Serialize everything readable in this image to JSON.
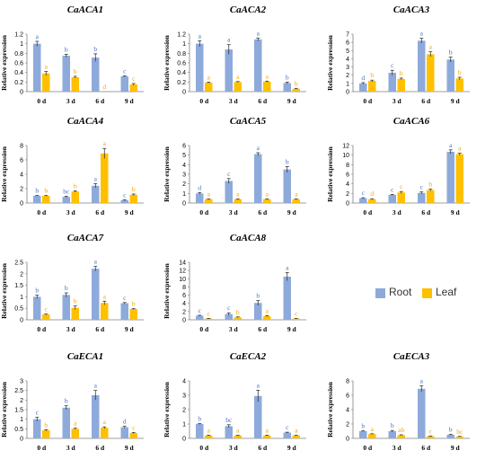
{
  "colors": {
    "root": "#8EAADB",
    "leaf": "#FFC000",
    "axis": "#7f7f7f",
    "root_label": "#4472C4",
    "leaf_label": "#F0A800"
  },
  "legend": {
    "root": "Root",
    "leaf": "Leaf"
  },
  "chart_data": [
    {
      "type": "bar",
      "title": "CaACA1",
      "ylabel": "Relative expression",
      "categories": [
        "0 d",
        "3 d",
        "6 d",
        "9 d"
      ],
      "ylim": [
        0,
        1.2
      ],
      "yticks": [
        0,
        0.2,
        0.4,
        0.6,
        0.8,
        1,
        1.2
      ],
      "series": [
        {
          "name": "Root",
          "values": [
            1.0,
            0.75,
            0.71,
            0.32
          ],
          "errors": [
            0.05,
            0.03,
            0.08,
            0.01
          ],
          "labels": [
            "a",
            "b",
            "b",
            "c"
          ]
        },
        {
          "name": "Leaf",
          "values": [
            0.38,
            0.3,
            0.0,
            0.15
          ],
          "errors": [
            0.04,
            0.02,
            0.0,
            0.02
          ],
          "labels": [
            "a",
            "b",
            "d",
            "c"
          ]
        }
      ]
    },
    {
      "type": "bar",
      "title": "CaACA2",
      "ylabel": "Relative expression",
      "categories": [
        "0 d",
        "3 d",
        "6 d",
        "9 d"
      ],
      "ylim": [
        0,
        1.2
      ],
      "yticks": [
        0,
        0.2,
        0.4,
        0.6,
        0.8,
        1,
        1.2
      ],
      "series": [
        {
          "name": "Root",
          "values": [
            1.0,
            0.88,
            1.09,
            0.18
          ],
          "errors": [
            0.06,
            0.1,
            0.03,
            0.02
          ],
          "labels": [
            "a",
            "a",
            "a",
            "b"
          ]
        },
        {
          "name": "Leaf",
          "values": [
            0.19,
            0.2,
            0.21,
            0.06
          ],
          "errors": [
            0.01,
            0.01,
            0.01,
            0.01
          ],
          "labels": [
            "a",
            "a",
            "a",
            "b"
          ]
        }
      ]
    },
    {
      "type": "bar",
      "title": "CaACA3",
      "ylabel": "Relative expression",
      "categories": [
        "0 d",
        "3 d",
        "6 d",
        "9 d"
      ],
      "ylim": [
        0,
        7
      ],
      "yticks": [
        0,
        1,
        2,
        3,
        4,
        5,
        6,
        7
      ],
      "series": [
        {
          "name": "Root",
          "values": [
            1.0,
            2.3,
            6.2,
            3.9
          ],
          "errors": [
            0.1,
            0.3,
            0.3,
            0.3
          ],
          "labels": [
            "d",
            "c",
            "a",
            "b"
          ]
        },
        {
          "name": "Leaf",
          "values": [
            1.3,
            1.55,
            4.55,
            1.6
          ],
          "errors": [
            0.1,
            0.1,
            0.3,
            0.15
          ],
          "labels": [
            "b",
            "b",
            "a",
            "b"
          ]
        }
      ]
    },
    {
      "type": "bar",
      "title": "CaACA4",
      "ylabel": "Relative expression",
      "categories": [
        "0 d",
        "3 d",
        "6 d",
        "9 d"
      ],
      "ylim": [
        0,
        8
      ],
      "yticks": [
        0,
        2,
        4,
        6,
        8
      ],
      "series": [
        {
          "name": "Root",
          "values": [
            1.0,
            0.85,
            2.4,
            0.4
          ],
          "errors": [
            0.05,
            0.1,
            0.3,
            0.05
          ],
          "labels": [
            "b",
            "bc",
            "a",
            "c"
          ]
        },
        {
          "name": "Leaf",
          "values": [
            1.0,
            1.6,
            6.9,
            1.15
          ],
          "errors": [
            0.05,
            0.1,
            0.7,
            0.1
          ],
          "labels": [
            "b",
            "b",
            "a",
            "b"
          ]
        }
      ]
    },
    {
      "type": "bar",
      "title": "CaACA5",
      "ylabel": "Relative expression",
      "categories": [
        "0 d",
        "3 d",
        "6 d",
        "9 d"
      ],
      "ylim": [
        0,
        6
      ],
      "yticks": [
        0,
        1,
        2,
        3,
        4,
        5,
        6
      ],
      "series": [
        {
          "name": "Root",
          "values": [
            1.0,
            2.3,
            5.1,
            3.5
          ],
          "errors": [
            0.1,
            0.25,
            0.15,
            0.3
          ],
          "labels": [
            "d",
            "c",
            "a",
            "b"
          ]
        },
        {
          "name": "Leaf",
          "values": [
            0.4,
            0.4,
            0.4,
            0.4
          ],
          "errors": [
            0.03,
            0.03,
            0.03,
            0.03
          ],
          "labels": [
            "a",
            "a",
            "a",
            "a"
          ]
        }
      ]
    },
    {
      "type": "bar",
      "title": "CaACA6",
      "ylabel": "Relative expression",
      "categories": [
        "0 d",
        "3 d",
        "6 d",
        "9 d"
      ],
      "ylim": [
        0,
        12
      ],
      "yticks": [
        0,
        2,
        4,
        6,
        8,
        10,
        12
      ],
      "series": [
        {
          "name": "Root",
          "values": [
            1.0,
            1.7,
            2.1,
            10.7
          ],
          "errors": [
            0.1,
            0.1,
            0.2,
            0.4
          ],
          "labels": [
            "c",
            "c",
            "c",
            "a"
          ]
        },
        {
          "name": "Leaf",
          "values": [
            0.8,
            2.2,
            2.7,
            10.2
          ],
          "errors": [
            0.1,
            0.2,
            0.2,
            0.2
          ],
          "labels": [
            "d",
            "c",
            "b",
            "a"
          ]
        }
      ]
    },
    {
      "type": "bar",
      "title": "CaACA7",
      "ylabel": "Relative expression",
      "categories": [
        "0 d",
        "3 d",
        "6 d",
        "9 d"
      ],
      "ylim": [
        0,
        2.5
      ],
      "yticks": [
        0,
        0.5,
        1,
        1.5,
        2,
        2.5
      ],
      "series": [
        {
          "name": "Root",
          "values": [
            1.0,
            1.08,
            2.22,
            0.72
          ],
          "errors": [
            0.07,
            0.09,
            0.1,
            0.03
          ],
          "labels": [
            "b",
            "b",
            "a",
            "c"
          ]
        },
        {
          "name": "Leaf",
          "values": [
            0.23,
            0.52,
            0.73,
            0.47
          ],
          "errors": [
            0.02,
            0.08,
            0.08,
            0.02
          ],
          "labels": [
            "c",
            "b",
            "a",
            "b"
          ]
        }
      ]
    },
    {
      "type": "bar",
      "title": "CaACA8",
      "ylabel": "Relative expression",
      "categories": [
        "0 d",
        "3 d",
        "6 d",
        "9 d"
      ],
      "ylim": [
        0,
        14
      ],
      "yticks": [
        0,
        2,
        4,
        6,
        8,
        10,
        12,
        14
      ],
      "series": [
        {
          "name": "Root",
          "values": [
            1.0,
            1.4,
            4.1,
            10.5
          ],
          "errors": [
            0.1,
            0.3,
            0.6,
            1.0
          ],
          "labels": [
            "c",
            "c",
            "b",
            "a"
          ]
        },
        {
          "name": "Leaf",
          "values": [
            0.3,
            0.6,
            0.9,
            0.3
          ],
          "errors": [
            0.05,
            0.1,
            0.1,
            0.05
          ],
          "labels": [
            "c",
            "b",
            "a",
            "c"
          ]
        }
      ]
    },
    {
      "type": "bar",
      "title": "CaECA1",
      "ylabel": "Relative expression",
      "categories": [
        "0 d",
        "3 d",
        "6 d",
        "9 d"
      ],
      "ylim": [
        0,
        3
      ],
      "yticks": [
        0,
        0.5,
        1,
        1.5,
        2,
        2.5,
        3
      ],
      "series": [
        {
          "name": "Root",
          "values": [
            1.0,
            1.6,
            2.25,
            0.58
          ],
          "errors": [
            0.1,
            0.1,
            0.25,
            0.05
          ],
          "labels": [
            "c",
            "b",
            "a",
            "d"
          ]
        },
        {
          "name": "Leaf",
          "values": [
            0.42,
            0.5,
            0.55,
            0.28
          ],
          "errors": [
            0.03,
            0.03,
            0.05,
            0.03
          ],
          "labels": [
            "b",
            "a",
            "a",
            "c"
          ]
        }
      ]
    },
    {
      "type": "bar",
      "title": "CaECA2",
      "ylabel": "Relative expression",
      "categories": [
        "0 d",
        "3 d",
        "6 d",
        "9 d"
      ],
      "ylim": [
        0,
        4
      ],
      "yticks": [
        0,
        1,
        2,
        3,
        4
      ],
      "series": [
        {
          "name": "Root",
          "values": [
            1.0,
            0.85,
            2.95,
            0.4
          ],
          "errors": [
            0.03,
            0.1,
            0.4,
            0.03
          ],
          "labels": [
            "b",
            "bc",
            "a",
            "c"
          ]
        },
        {
          "name": "Leaf",
          "values": [
            0.2,
            0.2,
            0.2,
            0.2
          ],
          "errors": [
            0.02,
            0.02,
            0.02,
            0.02
          ],
          "labels": [
            "a",
            "a",
            "a",
            "a"
          ]
        }
      ]
    },
    {
      "type": "bar",
      "title": "CaECA3",
      "ylabel": "Relative expression",
      "categories": [
        "0 d",
        "3 d",
        "6 d",
        "9 d"
      ],
      "ylim": [
        0,
        8
      ],
      "yticks": [
        0,
        2,
        4,
        6,
        8
      ],
      "series": [
        {
          "name": "Root",
          "values": [
            1.0,
            1.0,
            6.9,
            0.5
          ],
          "errors": [
            0.05,
            0.1,
            0.4,
            0.05
          ],
          "labels": [
            "b",
            "b",
            "a",
            "b"
          ]
        },
        {
          "name": "Leaf",
          "values": [
            0.6,
            0.45,
            0.3,
            0.25
          ],
          "errors": [
            0.05,
            0.05,
            0.03,
            0.03
          ],
          "labels": [
            "a",
            "ab",
            "c",
            "bc"
          ]
        }
      ]
    }
  ]
}
